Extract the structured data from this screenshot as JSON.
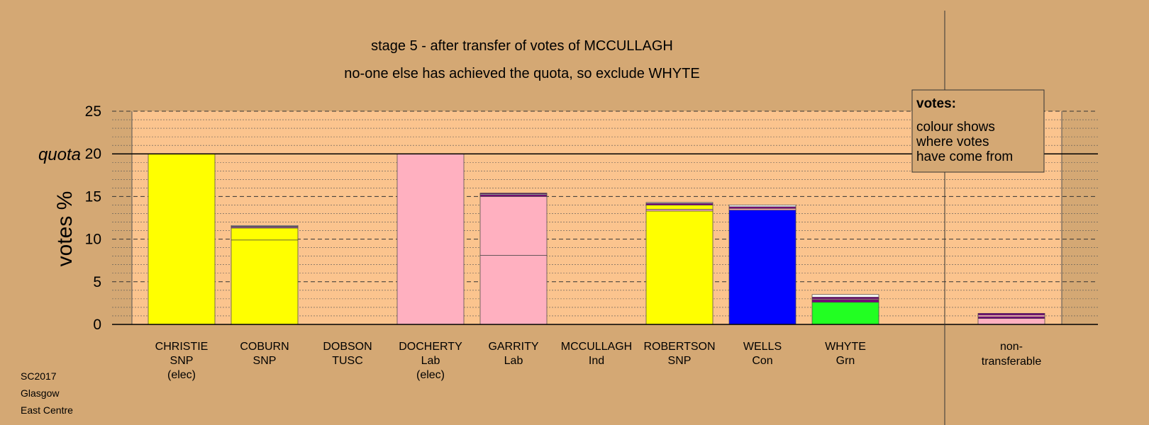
{
  "chart_data": {
    "type": "bar",
    "title": "stage 5 - after transfer of votes of MCCULLAGH",
    "subtitle": "no-one else has achieved the quota, so exclude WHYTE",
    "ylabel": "votes %",
    "ylim": [
      0,
      25
    ],
    "yticks": [
      "0",
      "5",
      "10",
      "15",
      "20",
      "25"
    ],
    "quota": {
      "value": 20,
      "label": "quota"
    },
    "candidates": [
      {
        "name": "CHRISTIE",
        "party": "SNP",
        "status": "(elec)",
        "segments": [
          {
            "value": 20.0,
            "color": "#ffff00"
          }
        ]
      },
      {
        "name": "COBURN",
        "party": "SNP",
        "status": "",
        "segments": [
          {
            "value": 9.9,
            "color": "#ffff00"
          },
          {
            "value": 1.4,
            "color": "#ffff00"
          },
          {
            "value": 0.1,
            "color": "#ffb0c0"
          },
          {
            "value": 0.1,
            "color": "#800080"
          },
          {
            "value": 0.1,
            "color": "#ffffff"
          }
        ]
      },
      {
        "name": "DOBSON",
        "party": "TUSC",
        "status": "",
        "segments": []
      },
      {
        "name": "DOCHERTY",
        "party": "Lab",
        "status": "(elec)",
        "segments": [
          {
            "value": 20.0,
            "color": "#ffb0c0"
          }
        ]
      },
      {
        "name": "GARRITY",
        "party": "Lab",
        "status": "",
        "segments": [
          {
            "value": 8.1,
            "color": "#ffb0c0"
          },
          {
            "value": 6.9,
            "color": "#ffb0c0"
          },
          {
            "value": 0.2,
            "color": "#800080"
          },
          {
            "value": 0.1,
            "color": "#ffffff"
          },
          {
            "value": 0.1,
            "color": "#800080"
          }
        ]
      },
      {
        "name": "MCCULLAGH",
        "party": "Ind",
        "status": "",
        "segments": []
      },
      {
        "name": "ROBERTSON",
        "party": "SNP",
        "status": "",
        "segments": [
          {
            "value": 13.3,
            "color": "#ffff00"
          },
          {
            "value": 0.2,
            "color": "#ffb0c0"
          },
          {
            "value": 0.5,
            "color": "#ffff00"
          },
          {
            "value": 0.2,
            "color": "#800080"
          },
          {
            "value": 0.1,
            "color": "#ffffff"
          }
        ]
      },
      {
        "name": "WELLS",
        "party": "Con",
        "status": "",
        "segments": [
          {
            "value": 13.4,
            "color": "#0000ff"
          },
          {
            "value": 0.2,
            "color": "#ffb0c0"
          },
          {
            "value": 0.2,
            "color": "#800080"
          },
          {
            "value": 0.2,
            "color": "#ffffff"
          }
        ]
      },
      {
        "name": "WHYTE",
        "party": "Grn",
        "status": "",
        "segments": [
          {
            "value": 2.6,
            "color": "#22ff22"
          },
          {
            "value": 0.3,
            "color": "#800080"
          },
          {
            "value": 0.1,
            "color": "#ffb0c0"
          },
          {
            "value": 0.2,
            "color": "#800080"
          },
          {
            "value": 0.3,
            "color": "#ffffff"
          }
        ]
      }
    ],
    "nontransferable": {
      "label_line1": "non-",
      "label_line2": "transferable",
      "segments": [
        {
          "value": 0.7,
          "color": "#ffb0c0"
        },
        {
          "value": 0.2,
          "color": "#800080"
        },
        {
          "value": 0.2,
          "color": "#ffb0c0"
        },
        {
          "value": 0.2,
          "color": "#800080"
        }
      ]
    },
    "legend": {
      "title": "votes:",
      "lines": [
        "colour shows",
        "where votes",
        "have come from"
      ],
      "placement": "top-right"
    },
    "colors": {
      "background": "#d4a874",
      "plot_area": "#fbc48e",
      "snp": "#ffff00",
      "lab": "#ffb0c0",
      "con": "#0000ff",
      "grn": "#22ff22",
      "other": "#800080"
    }
  },
  "footer": {
    "election": "SC2017",
    "city": "Glasgow",
    "ward": "East Centre"
  }
}
